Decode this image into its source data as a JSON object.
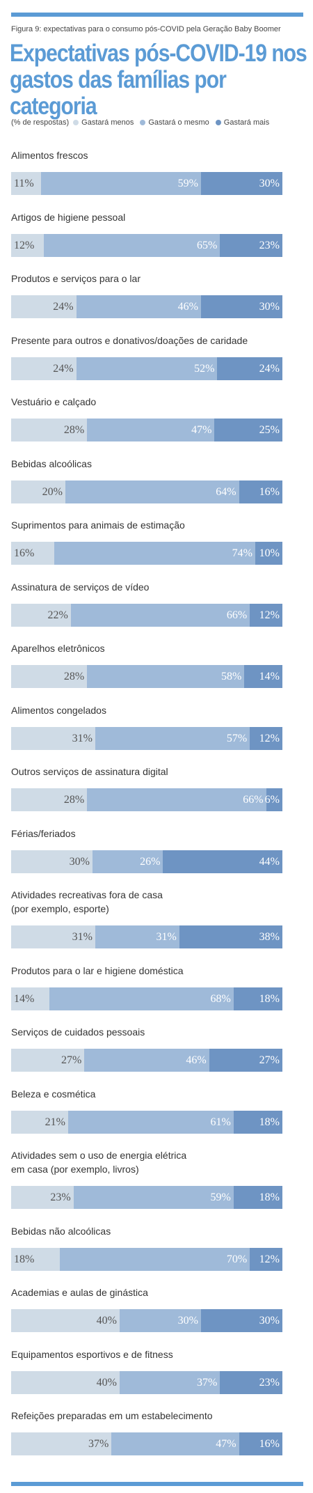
{
  "figure_label": "Figura 9: expectativas para o consumo pós-COVID pela Geração Baby Boomer",
  "title_line1": "Expectativas pós-COVID-19 nos",
  "title_line2": "gastos das famílias por categoria",
  "legend": {
    "unit": "(% de respostas)",
    "less": "Gastará menos",
    "same": "Gastará o mesmo",
    "more": "Gastará mais"
  },
  "colors": {
    "less": "#cfdbe6",
    "same": "#9fbad9",
    "more": "#6e94c3",
    "accent": "#5b9bd5"
  },
  "chart_data": {
    "type": "bar",
    "orientation": "horizontal",
    "stacked": true,
    "series_names": [
      "Gastará menos",
      "Gastará o mesmo",
      "Gastará mais"
    ],
    "unit": "%",
    "categories": [
      {
        "label": [
          "Alimentos frescos"
        ],
        "values": [
          11,
          59,
          30
        ]
      },
      {
        "label": [
          "Artigos de higiene pessoal"
        ],
        "values": [
          12,
          65,
          23
        ]
      },
      {
        "label": [
          "Produtos e serviços para o lar"
        ],
        "values": [
          24,
          46,
          30
        ]
      },
      {
        "label": [
          "Presente para outros e donativos/doações de caridade"
        ],
        "values": [
          24,
          52,
          24
        ]
      },
      {
        "label": [
          "Vestuário e calçado"
        ],
        "values": [
          28,
          47,
          25
        ]
      },
      {
        "label": [
          "Bebidas alcoólicas"
        ],
        "values": [
          20,
          64,
          16
        ]
      },
      {
        "label": [
          "Suprimentos para animais de estimação"
        ],
        "values": [
          16,
          74,
          10
        ]
      },
      {
        "label": [
          "Assinatura de serviços de vídeo"
        ],
        "values": [
          22,
          66,
          12
        ]
      },
      {
        "label": [
          "Aparelhos eletrônicos"
        ],
        "values": [
          28,
          58,
          14
        ]
      },
      {
        "label": [
          "Alimentos congelados"
        ],
        "values": [
          31,
          57,
          12
        ]
      },
      {
        "label": [
          "Outros serviços de assinatura digital"
        ],
        "values": [
          28,
          66,
          6
        ]
      },
      {
        "label": [
          "Férias/feriados"
        ],
        "values": [
          30,
          26,
          44
        ]
      },
      {
        "label": [
          "Atividades recreativas fora de casa",
          "(por exemplo, esporte)"
        ],
        "values": [
          31,
          31,
          38
        ]
      },
      {
        "label": [
          "Produtos para o lar e higiene doméstica"
        ],
        "values": [
          14,
          68,
          18
        ]
      },
      {
        "label": [
          "Serviços de cuidados pessoais"
        ],
        "values": [
          27,
          46,
          27
        ]
      },
      {
        "label": [
          "Beleza e cosmética"
        ],
        "values": [
          21,
          61,
          18
        ]
      },
      {
        "label": [
          "Atividades sem o uso de energia elétrica",
          "em casa (por exemplo, livros)"
        ],
        "values": [
          23,
          59,
          18
        ]
      },
      {
        "label": [
          "Bebidas não alcoólicas"
        ],
        "values": [
          18,
          70,
          12
        ]
      },
      {
        "label": [
          "Academias e aulas de ginástica"
        ],
        "values": [
          40,
          30,
          30
        ]
      },
      {
        "label": [
          "Equipamentos esportivos e de fitness"
        ],
        "values": [
          40,
          37,
          23
        ]
      },
      {
        "label": [
          "Refeições preparadas em um estabelecimento"
        ],
        "values": [
          37,
          47,
          16
        ]
      }
    ]
  }
}
